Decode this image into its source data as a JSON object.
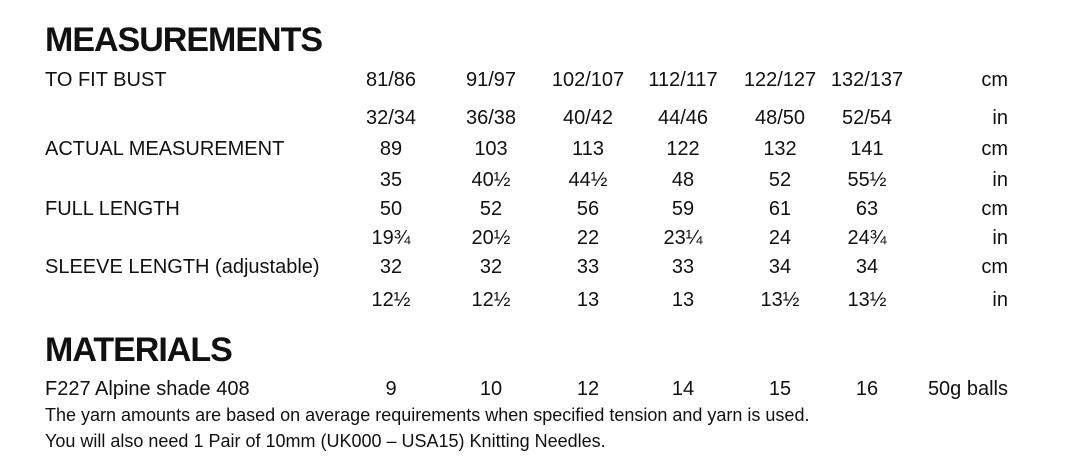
{
  "measurements": {
    "title": "MEASUREMENTS",
    "rows": [
      {
        "label": "TO FIT BUST",
        "values": [
          "81/86",
          "91/97",
          "102/107",
          "112/117",
          "122/127",
          "132/137"
        ],
        "unit": "cm"
      },
      {
        "values": [
          "32/34",
          "36/38",
          "40/42",
          "44/46",
          "48/50",
          "52/54"
        ],
        "unit": "in"
      },
      {
        "label": "ACTUAL MEASUREMENT",
        "values": [
          "89",
          "103",
          "113",
          "122",
          "132",
          "141"
        ],
        "unit": "cm"
      },
      {
        "values": [
          "35",
          "40½",
          "44½",
          "48",
          "52",
          "55½"
        ],
        "unit": "in"
      },
      {
        "label": "FULL LENGTH",
        "values": [
          "50",
          "52",
          "56",
          "59",
          "61",
          "63"
        ],
        "unit": "cm"
      },
      {
        "values": [
          "19¾",
          "20½",
          "22",
          "23¼",
          "24",
          "24¾"
        ],
        "unit": "in"
      },
      {
        "label": "SLEEVE LENGTH (adjustable)",
        "values": [
          "32",
          "32",
          "33",
          "33",
          "34",
          "34"
        ],
        "unit": "cm"
      },
      {
        "values": [
          "12½",
          "12½",
          "13",
          "13",
          "13½",
          "13½"
        ],
        "unit": "in"
      }
    ]
  },
  "materials": {
    "title": "MATERIALS",
    "rows": [
      {
        "label": "F227 Alpine shade 408",
        "values": [
          "9",
          "10",
          "12",
          "14",
          "15",
          "16"
        ],
        "unit": "50g balls"
      }
    ],
    "notes": [
      "The yarn amounts are based on average requirements when specified tension and yarn is used.",
      "You will also need 1 Pair of 10mm (UK000 – USA15) Knitting Needles."
    ]
  }
}
